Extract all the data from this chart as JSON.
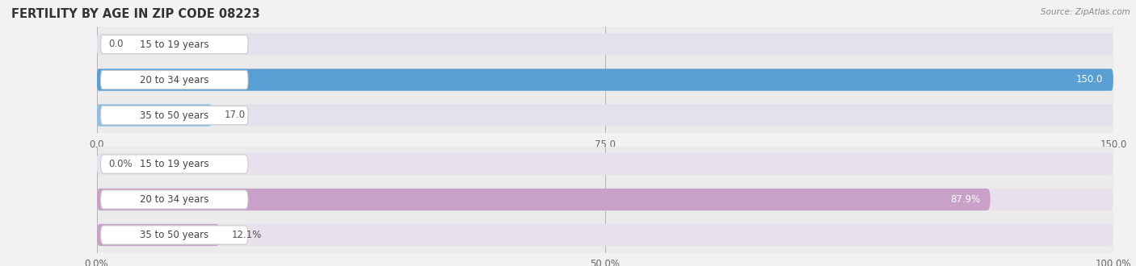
{
  "title": "FERTILITY BY AGE IN ZIP CODE 08223",
  "source": "Source: ZipAtlas.com",
  "top_chart": {
    "categories": [
      "15 to 19 years",
      "20 to 34 years",
      "35 to 50 years"
    ],
    "values": [
      0.0,
      150.0,
      17.0
    ],
    "xlim": [
      0.0,
      150.0
    ],
    "xticks": [
      0.0,
      75.0,
      150.0
    ],
    "xtick_labels": [
      "0.0",
      "75.0",
      "150.0"
    ],
    "bar_color_normal": "#8fbfe0",
    "bar_color_full": "#5a9fd4",
    "bar_bg_color": "#e2e2ec"
  },
  "bottom_chart": {
    "categories": [
      "15 to 19 years",
      "20 to 34 years",
      "35 to 50 years"
    ],
    "values": [
      0.0,
      87.9,
      12.1
    ],
    "xlim": [
      0.0,
      100.0
    ],
    "xticks": [
      0.0,
      50.0,
      100.0
    ],
    "xtick_labels": [
      "0.0%",
      "50.0%",
      "100.0%"
    ],
    "bar_color_normal": "#c9a0c8",
    "bar_color_full": "#b07ab0",
    "bar_bg_color": "#e8e0ec"
  },
  "fig_bg_color": "#f2f2f2",
  "plot_bg_color": "#ebebeb",
  "bar_height": 0.62,
  "bar_gap": 0.18,
  "label_fontsize": 8.5,
  "tick_fontsize": 8.5,
  "title_fontsize": 10.5,
  "category_fontsize": 8.5,
  "value_label_color_inside": "#ffffff",
  "value_label_color_outside": "#555555",
  "cat_label_bg": "#ffffff",
  "cat_label_edge": "#cccccc"
}
